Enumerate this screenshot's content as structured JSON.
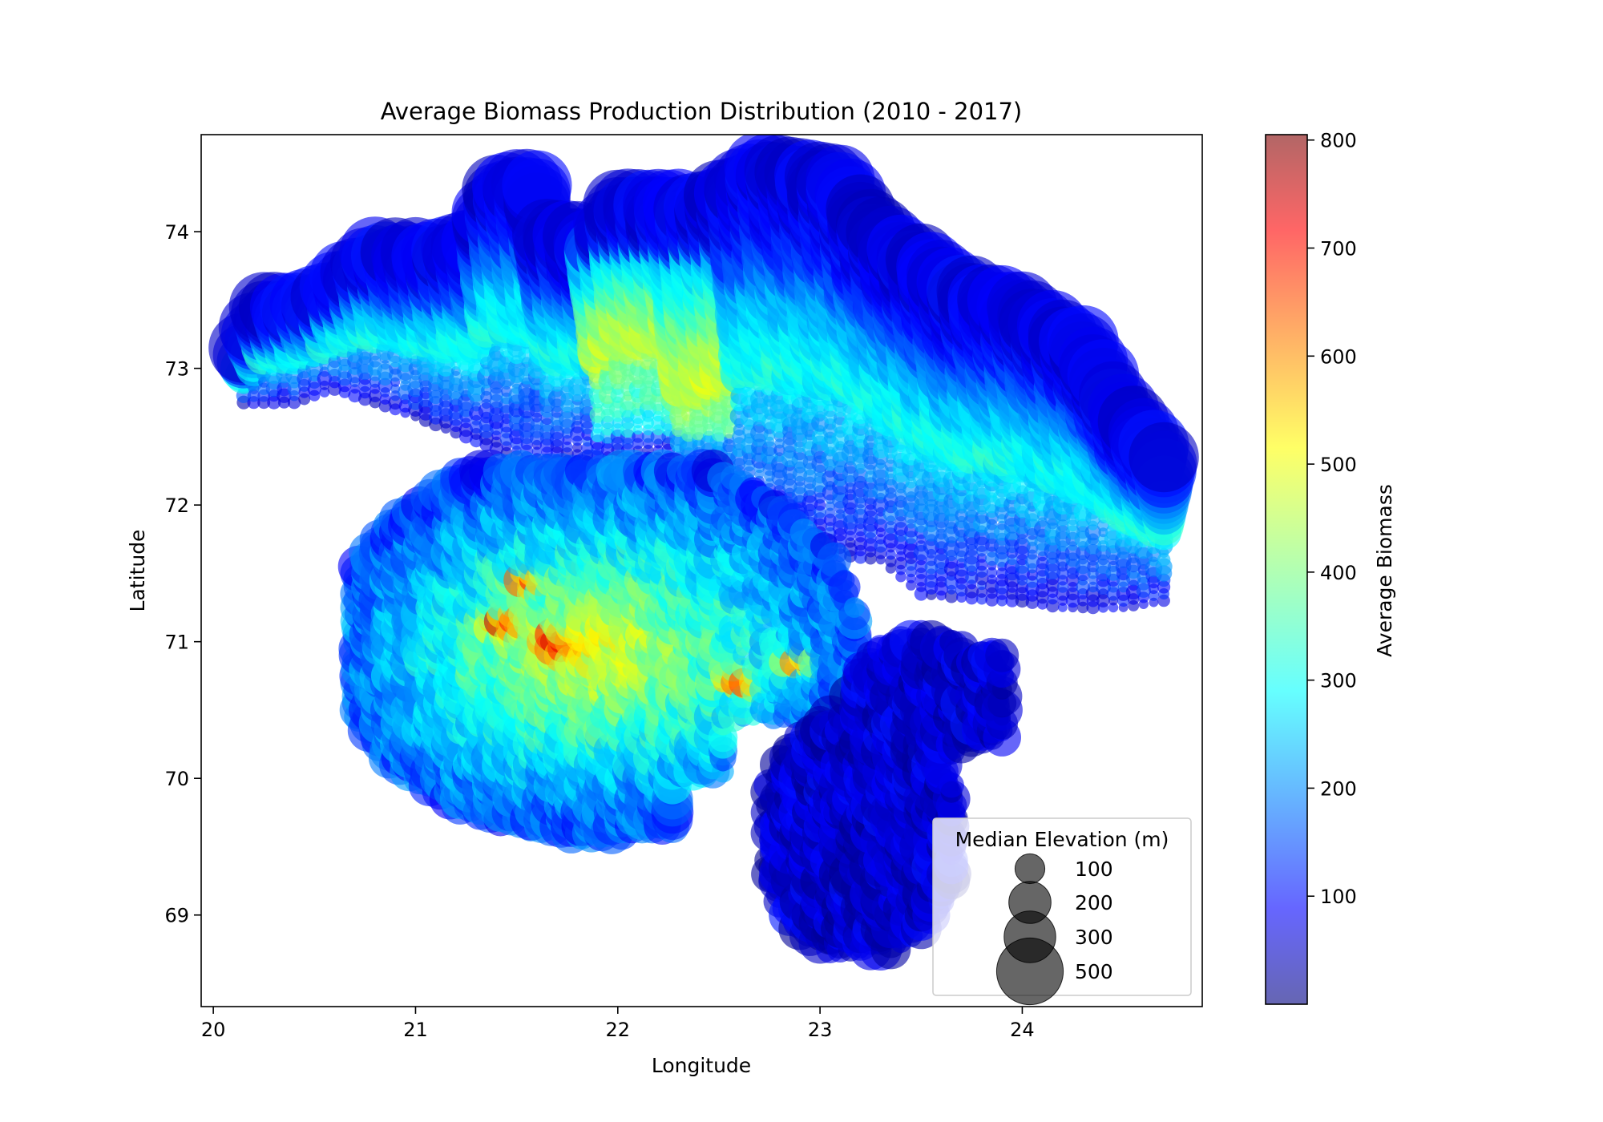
{
  "chart_data": {
    "type": "scatter",
    "title": "Average Biomass Production Distribution (2010 - 2017)",
    "xlabel": "Longitude",
    "ylabel": "Latitude",
    "xlim": [
      19.94,
      24.89
    ],
    "ylim": [
      68.33,
      74.71
    ],
    "xticks": [
      20,
      21,
      22,
      23,
      24
    ],
    "yticks": [
      69,
      70,
      71,
      72,
      73,
      74
    ],
    "grid": false,
    "colormap": "jet",
    "colorbar": {
      "label": "Average Biomass",
      "range": [
        0,
        805
      ],
      "ticks": [
        100,
        200,
        300,
        400,
        500,
        600,
        700,
        800
      ]
    },
    "size_legend": {
      "title": "Median Elevation (m)",
      "placement": "lower right",
      "entries": [
        {
          "label": "100",
          "value": 100
        },
        {
          "label": "200",
          "value": 200
        },
        {
          "label": "300",
          "value": 300
        },
        {
          "label": "500",
          "value": 500
        }
      ]
    },
    "point_alpha": 0.6,
    "grid_spacing": {
      "lon": 0.05,
      "lat": 0.05
    },
    "regions": [
      {
        "name": "north_band",
        "zones": [
          {
            "lon": [
              20.15,
              24.7
            ],
            "lat_top": [
              [
                20.15,
                73.15
              ],
              [
                20.25,
                73.45
              ],
              [
                20.5,
                73.5
              ],
              [
                20.8,
                73.85
              ],
              [
                21.1,
                73.85
              ],
              [
                21.3,
                73.95
              ],
              [
                21.4,
                74.35
              ],
              [
                21.6,
                74.35
              ],
              [
                21.65,
                74.0
              ],
              [
                21.9,
                73.95
              ],
              [
                22.0,
                74.2
              ],
              [
                22.4,
                74.2
              ],
              [
                22.6,
                74.35
              ],
              [
                22.7,
                74.5
              ],
              [
                23.1,
                74.4
              ],
              [
                23.25,
                74.1
              ],
              [
                23.5,
                73.8
              ],
              [
                23.7,
                73.6
              ],
              [
                24.0,
                73.45
              ],
              [
                24.3,
                73.2
              ],
              [
                24.5,
                72.7
              ],
              [
                24.7,
                72.35
              ]
            ],
            "lat_bottom": [
              [
                20.15,
                72.75
              ],
              [
                20.4,
                72.75
              ],
              [
                20.6,
                72.85
              ],
              [
                21.0,
                72.65
              ],
              [
                21.5,
                72.35
              ],
              [
                22.0,
                72.3
              ],
              [
                22.25,
                72.3
              ],
              [
                22.3,
                71.65
              ],
              [
                22.6,
                71.75
              ],
              [
                23.0,
                71.65
              ],
              [
                23.3,
                71.6
              ],
              [
                23.5,
                71.35
              ],
              [
                23.9,
                71.3
              ],
              [
                24.0,
                71.3
              ],
              [
                24.2,
                71.25
              ],
              [
                24.5,
                71.25
              ],
              [
                24.7,
                71.3
              ]
            ]
          }
        ]
      },
      {
        "name": "middle_landmass",
        "lon": [
          20.7,
          23.25
        ],
        "lat": [
          69.0,
          72.3
        ]
      },
      {
        "name": "southeast_islands",
        "lon": [
          22.75,
          23.95
        ],
        "lat": [
          68.6,
          71.05
        ]
      }
    ],
    "hotspots": [
      {
        "lon": 21.45,
        "lat": 71.15,
        "biomass": 620
      },
      {
        "lon": 21.7,
        "lat": 71.0,
        "biomass": 580
      },
      {
        "lon": 22.6,
        "lat": 70.7,
        "biomass": 640
      },
      {
        "lon": 22.9,
        "lat": 70.85,
        "biomass": 700
      },
      {
        "lon": 21.55,
        "lat": 71.45,
        "biomass": 500
      }
    ]
  }
}
